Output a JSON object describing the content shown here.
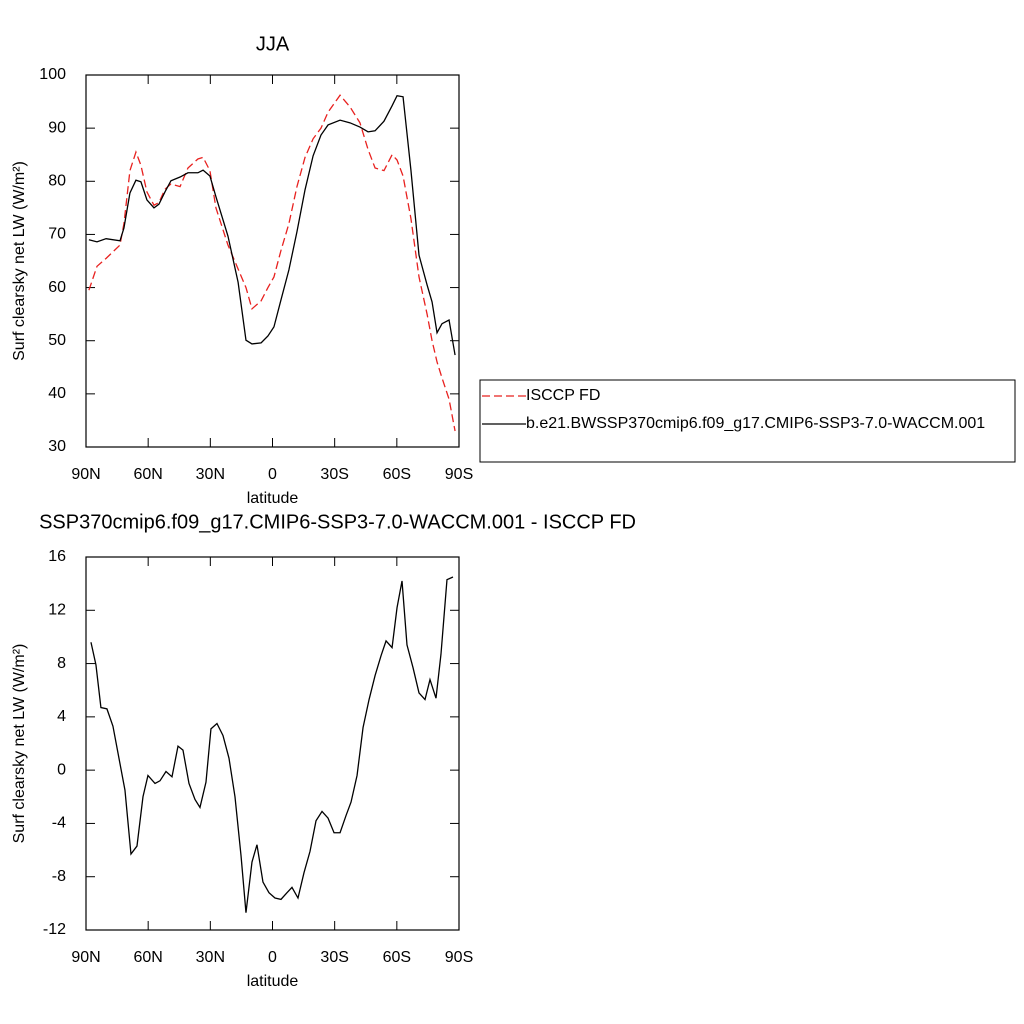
{
  "chart_data": [
    {
      "type": "line",
      "title": "JJA",
      "xlabel": "latitude",
      "ylabel": "Surf clearsky net LW (W/m²)",
      "x": [
        88.6,
        84.7,
        80.3,
        73.6,
        71.7,
        68.8,
        65.9,
        63.5,
        60.6,
        57.2,
        54.8,
        51.9,
        49.0,
        44.6,
        40.8,
        36.0,
        33.5,
        30.2,
        27.3,
        21.5,
        16.6,
        12.8,
        9.9,
        5.5,
        2.2,
        -0.7,
        -4.1,
        -7.9,
        -11.8,
        -15.7,
        -19.6,
        -23.4,
        -26.8,
        -32.6,
        -37.4,
        -42.2,
        -46.1,
        -49.5,
        -53.8,
        -57.7,
        -60.1,
        -63.0,
        -66.8,
        -70.7,
        -74.6,
        -77.0,
        -79.4,
        -81.8,
        -85.2,
        -88.1
      ],
      "series": [
        {
          "name": "ISCCP FD",
          "color": "#e8211f",
          "line_style": "dashed",
          "values": [
            59.5,
            64,
            65.5,
            68,
            72,
            82,
            85.5,
            83,
            78,
            75.5,
            76,
            78.5,
            79.5,
            79,
            82.5,
            84.2,
            84.5,
            82,
            75,
            68,
            63.5,
            60,
            56,
            57.5,
            60,
            62,
            67,
            72,
            79,
            84.5,
            88,
            90,
            93,
            96.2,
            94,
            91,
            86,
            82.5,
            82,
            85,
            84,
            81,
            73,
            62,
            55,
            50,
            46,
            43,
            39,
            33
          ]
        },
        {
          "name": "b.e21.BWSSP370cmip6.f09_g17.CMIP6-SSP3-7.0-WACCM.001",
          "color": "#000000",
          "line_style": "solid",
          "values": [
            69.0,
            68.6,
            69.2,
            68.8,
            71.2,
            77.8,
            80.2,
            79.9,
            76.5,
            75.0,
            75.7,
            78.0,
            80.1,
            80.8,
            81.6,
            81.6,
            82.1,
            81.0,
            77.1,
            69.7,
            61.0,
            50.1,
            49.4,
            49.6,
            50.9,
            52.6,
            57.7,
            63.3,
            70.5,
            78.4,
            84.8,
            88.7,
            90.6,
            91.5,
            91.0,
            90.2,
            89.3,
            89.5,
            91.3,
            94.2,
            96.1,
            95.9,
            82.1,
            66.1,
            60.5,
            57.3,
            51.5,
            53.2,
            53.9,
            47.3
          ]
        }
      ],
      "xlim": [
        90,
        -90
      ],
      "xticks": [
        {
          "value": 90,
          "label": "90N"
        },
        {
          "value": 60,
          "label": "60N"
        },
        {
          "value": 30,
          "label": "30N"
        },
        0,
        {
          "value": -30,
          "label": "30S"
        },
        {
          "value": -60,
          "label": "60S"
        },
        {
          "value": -90,
          "label": "90S"
        }
      ],
      "ylim": [
        30,
        100
      ],
      "yticks": [
        30,
        40,
        50,
        60,
        70,
        80,
        90,
        100
      ],
      "legend": "right"
    },
    {
      "type": "line",
      "title": "SSP370cmip6.f09_g17.CMIP6-SSP3-7.0-WACCM.001 - ISCCP FD",
      "xlabel": "latitude",
      "ylabel": "Surf clearsky net LW (W/m²)",
      "x": [
        87.6,
        85.2,
        82.8,
        79.9,
        77.0,
        74.1,
        71.2,
        68.3,
        65.4,
        62.5,
        60.1,
        56.7,
        54.3,
        51.4,
        48.5,
        45.6,
        43.2,
        40.3,
        37.4,
        35.0,
        32.1,
        29.7,
        26.8,
        23.9,
        21.0,
        18.1,
        15.2,
        12.8,
        9.9,
        7.5,
        4.6,
        1.7,
        -1.2,
        -4.1,
        -7.0,
        -9.4,
        -12.3,
        -15.2,
        -18.1,
        -21.0,
        -23.9,
        -26.8,
        -29.7,
        -32.6,
        -35.5,
        -37.9,
        -40.8,
        -43.7,
        -46.6,
        -49.5,
        -52.4,
        -54.8,
        -57.7,
        -60.1,
        -62.5,
        -64.9,
        -67.8,
        -70.7,
        -73.6,
        -76.0,
        -78.9,
        -81.3,
        -84.2,
        -87.1
      ],
      "values": [
        9.6,
        7.9,
        4.7,
        4.6,
        3.3,
        0.9,
        -1.5,
        -6.3,
        -5.7,
        -2.0,
        -0.4,
        -1.0,
        -0.8,
        -0.1,
        -0.5,
        1.8,
        1.5,
        -1.0,
        -2.2,
        -2.8,
        -0.9,
        3.1,
        3.5,
        2.6,
        0.9,
        -2.0,
        -6.4,
        -10.7,
        -6.9,
        -5.6,
        -8.4,
        -9.2,
        -9.6,
        -9.7,
        -9.2,
        -8.8,
        -9.6,
        -7.7,
        -6.1,
        -3.8,
        -3.1,
        -3.6,
        -4.7,
        -4.7,
        -3.4,
        -2.4,
        -0.4,
        3.2,
        5.3,
        7.1,
        8.6,
        9.7,
        9.2,
        12.2,
        14.2,
        9.4,
        7.7,
        5.8,
        5.3,
        6.8,
        5.4,
        8.7,
        14.3,
        14.5
      ],
      "color": "#000000",
      "xlim": [
        90,
        -90
      ],
      "xticks": [
        {
          "value": 90,
          "label": "90N"
        },
        {
          "value": 60,
          "label": "60N"
        },
        {
          "value": 30,
          "label": "30N"
        },
        0,
        {
          "value": -30,
          "label": "30S"
        },
        {
          "value": -60,
          "label": "60S"
        },
        {
          "value": -90,
          "label": "90S"
        }
      ],
      "ylim": [
        -12,
        16
      ],
      "yticks": [
        -12,
        -8,
        -4,
        0,
        4,
        8,
        12,
        16
      ]
    }
  ]
}
